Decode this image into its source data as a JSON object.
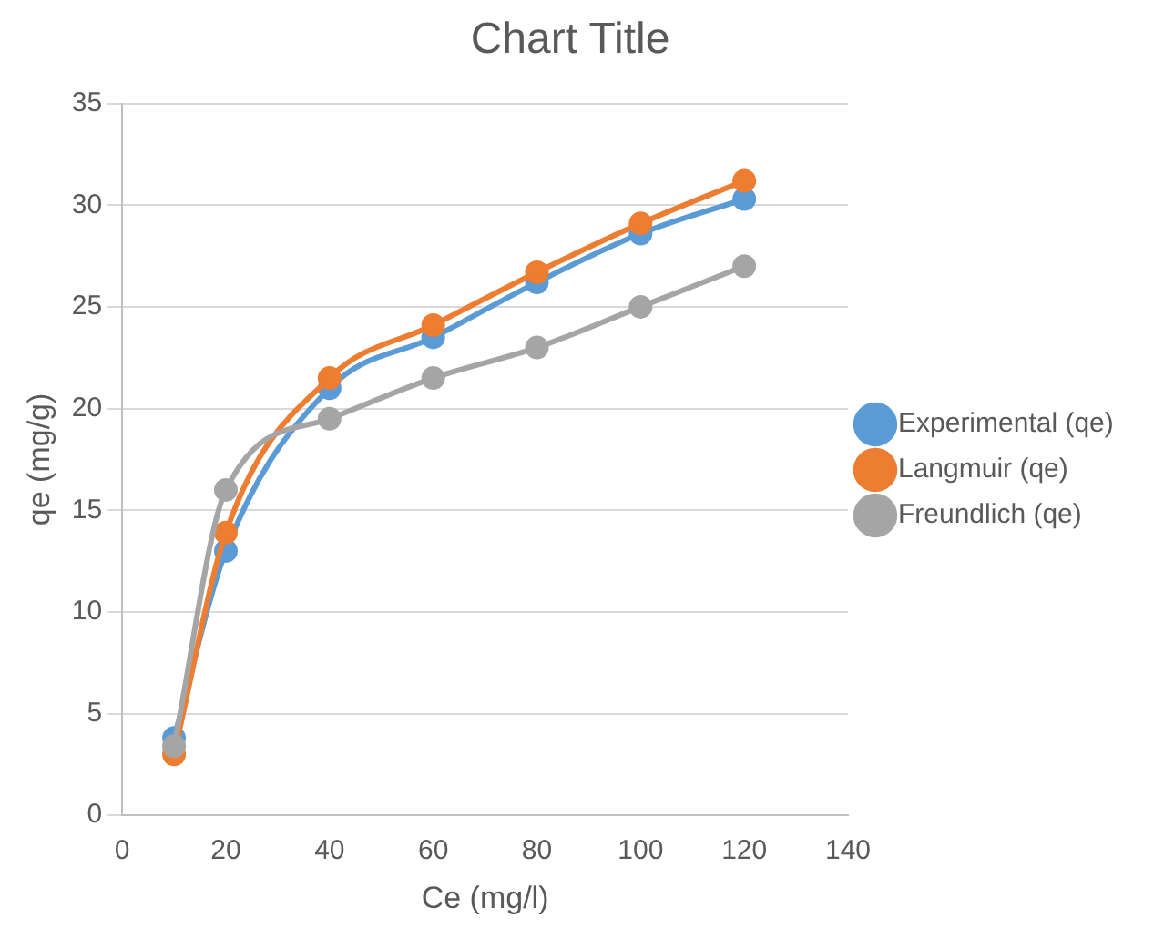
{
  "chart_data": {
    "type": "line",
    "title": "Chart Title",
    "xlabel": "Ce (mg/l)",
    "ylabel": "qe (mg/g)",
    "x": [
      10,
      20,
      40,
      60,
      80,
      100,
      120
    ],
    "series": [
      {
        "name": "Experimental (qe)",
        "color": "#5b9bd5",
        "values": [
          3.8,
          13,
          21,
          23.5,
          26.2,
          28.6,
          30.3
        ]
      },
      {
        "name": "Langmuir (qe)",
        "color": "#ed7d31",
        "values": [
          3,
          13.9,
          21.5,
          24.1,
          26.7,
          29.1,
          31.2
        ]
      },
      {
        "name": "Freundlich (qe)",
        "color": "#a5a5a5",
        "values": [
          3.4,
          16,
          19.5,
          21.5,
          23,
          25,
          27
        ]
      }
    ],
    "xlim": [
      0,
      140
    ],
    "xticks": [
      0,
      20,
      40,
      60,
      80,
      100,
      120,
      140
    ],
    "ylim": [
      0,
      35
    ],
    "yticks": [
      0,
      5,
      10,
      15,
      20,
      25,
      30,
      35
    ],
    "grid": "y",
    "legend": "right",
    "marker": "circle",
    "line_style": "solid"
  }
}
